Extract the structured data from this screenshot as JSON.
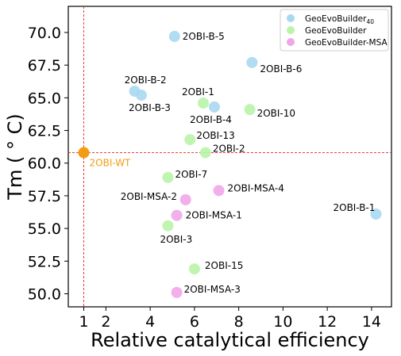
{
  "chart_data": {
    "type": "scatter",
    "xlabel": "Relative catalytical efficiency",
    "ylabel": "Tm ( ° C)",
    "xlim": [
      0.3,
      14.9
    ],
    "ylim": [
      49.0,
      72.0
    ],
    "xticks": [
      1,
      2,
      4,
      6,
      8,
      10,
      12,
      14
    ],
    "yticks": [
      50.0,
      52.5,
      55.0,
      57.5,
      60.0,
      62.5,
      65.0,
      67.5,
      70.0
    ],
    "ytick_labels": [
      "50.0",
      "52.5",
      "55.0",
      "57.5",
      "60.0",
      "62.5",
      "65.0",
      "67.5",
      "70.0"
    ],
    "legend_position": "top-right",
    "reference": {
      "label": "2OBI-WT",
      "x": 1.0,
      "y": 60.8,
      "color": "#F39C12",
      "line_color": "#E8261F"
    },
    "series": [
      {
        "name": "GeoEvoBuilder",
        "name_subscript": "40",
        "color": "#A8D8F0",
        "points": [
          {
            "label": "2OBI-B-5",
            "x": 5.1,
            "y": 69.7
          },
          {
            "label": "2OBI-B-6",
            "x": 8.6,
            "y": 67.7
          },
          {
            "label": "2OBI-B-2",
            "x": 3.3,
            "y": 65.5
          },
          {
            "label": "2OBI-B-3",
            "x": 3.6,
            "y": 65.2
          },
          {
            "label": "2OBI-B-4",
            "x": 6.9,
            "y": 64.3
          },
          {
            "label": "2OBI-B-1",
            "x": 14.2,
            "y": 56.1
          }
        ]
      },
      {
        "name": "GeoEvoBuilder",
        "color": "#B9F4A9",
        "points": [
          {
            "label": "2OBI-1",
            "x": 6.4,
            "y": 64.6
          },
          {
            "label": "2OBI-10",
            "x": 8.5,
            "y": 64.1
          },
          {
            "label": "2OBI-13",
            "x": 5.8,
            "y": 61.8
          },
          {
            "label": "2OBI-2",
            "x": 6.5,
            "y": 60.8
          },
          {
            "label": "2OBI-7",
            "x": 4.8,
            "y": 58.9
          },
          {
            "label": "2OBI-3",
            "x": 4.8,
            "y": 55.2
          },
          {
            "label": "2OBI-15",
            "x": 6.0,
            "y": 51.9
          }
        ]
      },
      {
        "name": "GeoEvoBuilder-MSA",
        "color": "#EFA6EA",
        "points": [
          {
            "label": "2OBI-MSA-4",
            "x": 7.1,
            "y": 57.9
          },
          {
            "label": "2OBI-MSA-2",
            "x": 5.6,
            "y": 57.2
          },
          {
            "label": "2OBI-MSA-1",
            "x": 5.2,
            "y": 56.0
          },
          {
            "label": "2OBI-MSA-3",
            "x": 5.2,
            "y": 50.1
          }
        ]
      }
    ]
  }
}
